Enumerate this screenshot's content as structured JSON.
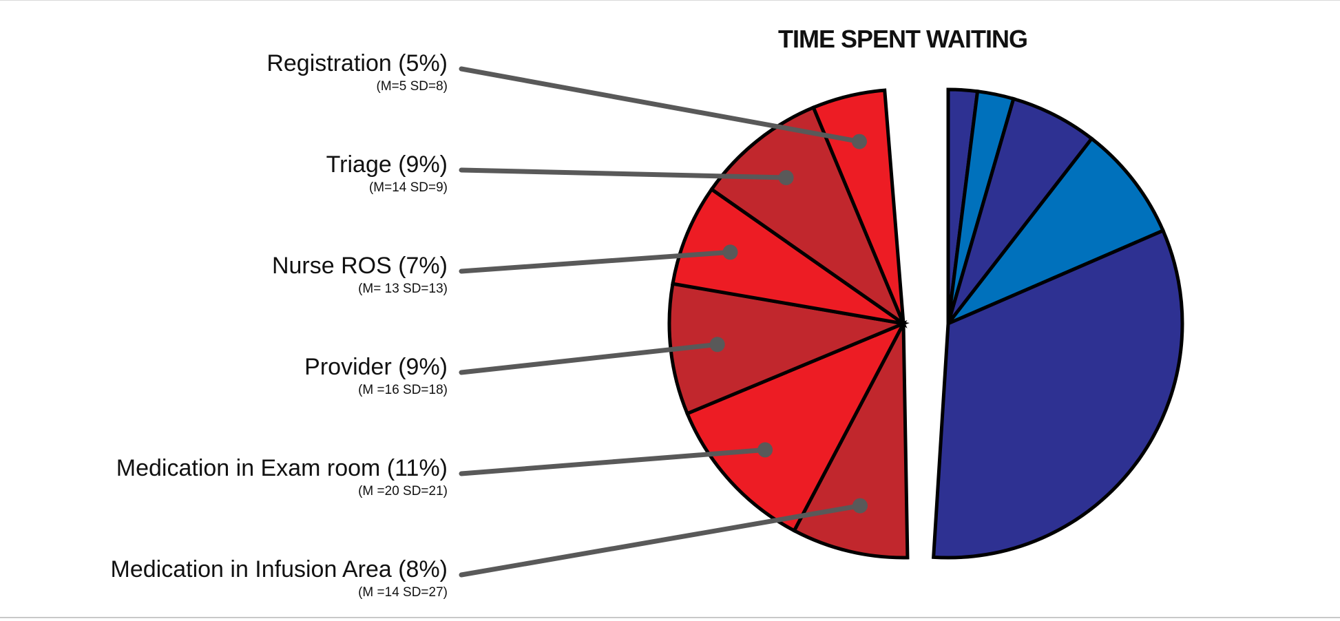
{
  "chart_data": {
    "type": "pie",
    "title": "TIME SPENT WAITING",
    "slices": [
      {
        "label": "Medication in Infusion Area (8%)",
        "stats": "(M =14 SD=27)",
        "value": 8,
        "color": "#c1272d"
      },
      {
        "label": "Medication in Exam room (11%)",
        "stats": "(M =20 SD=21)",
        "value": 11,
        "color": "#ed1c24"
      },
      {
        "label": "Provider (9%)",
        "stats": "(M =16 SD=18)",
        "value": 9,
        "color": "#c1272d"
      },
      {
        "label": "Nurse ROS (7%)",
        "stats": "(M= 13 SD=13)",
        "value": 7,
        "color": "#ed1c24"
      },
      {
        "label": "Triage (9%)",
        "stats": "(M=14 SD=9)",
        "value": 9,
        "color": "#c1272d"
      },
      {
        "label": "Registration (5%)",
        "stats": "(M=5 SD=8)",
        "value": 5,
        "color": "#ed1c24"
      }
    ],
    "other_slices": [
      {
        "value": 2,
        "color": "#2e3192"
      },
      {
        "value": 2.5,
        "color": "#0071bc"
      },
      {
        "value": 6,
        "color": "#2e3192"
      },
      {
        "value": 8,
        "color": "#0071bc"
      },
      {
        "value": 32.5,
        "color": "#2e3192"
      }
    ],
    "label_order": [
      "Registration (5%)",
      "Triage (9%)",
      "Nurse ROS (7%)",
      "Provider (9%)",
      "Medication in Exam room (11%)",
      "Medication in Infusion Area (8%)"
    ]
  }
}
